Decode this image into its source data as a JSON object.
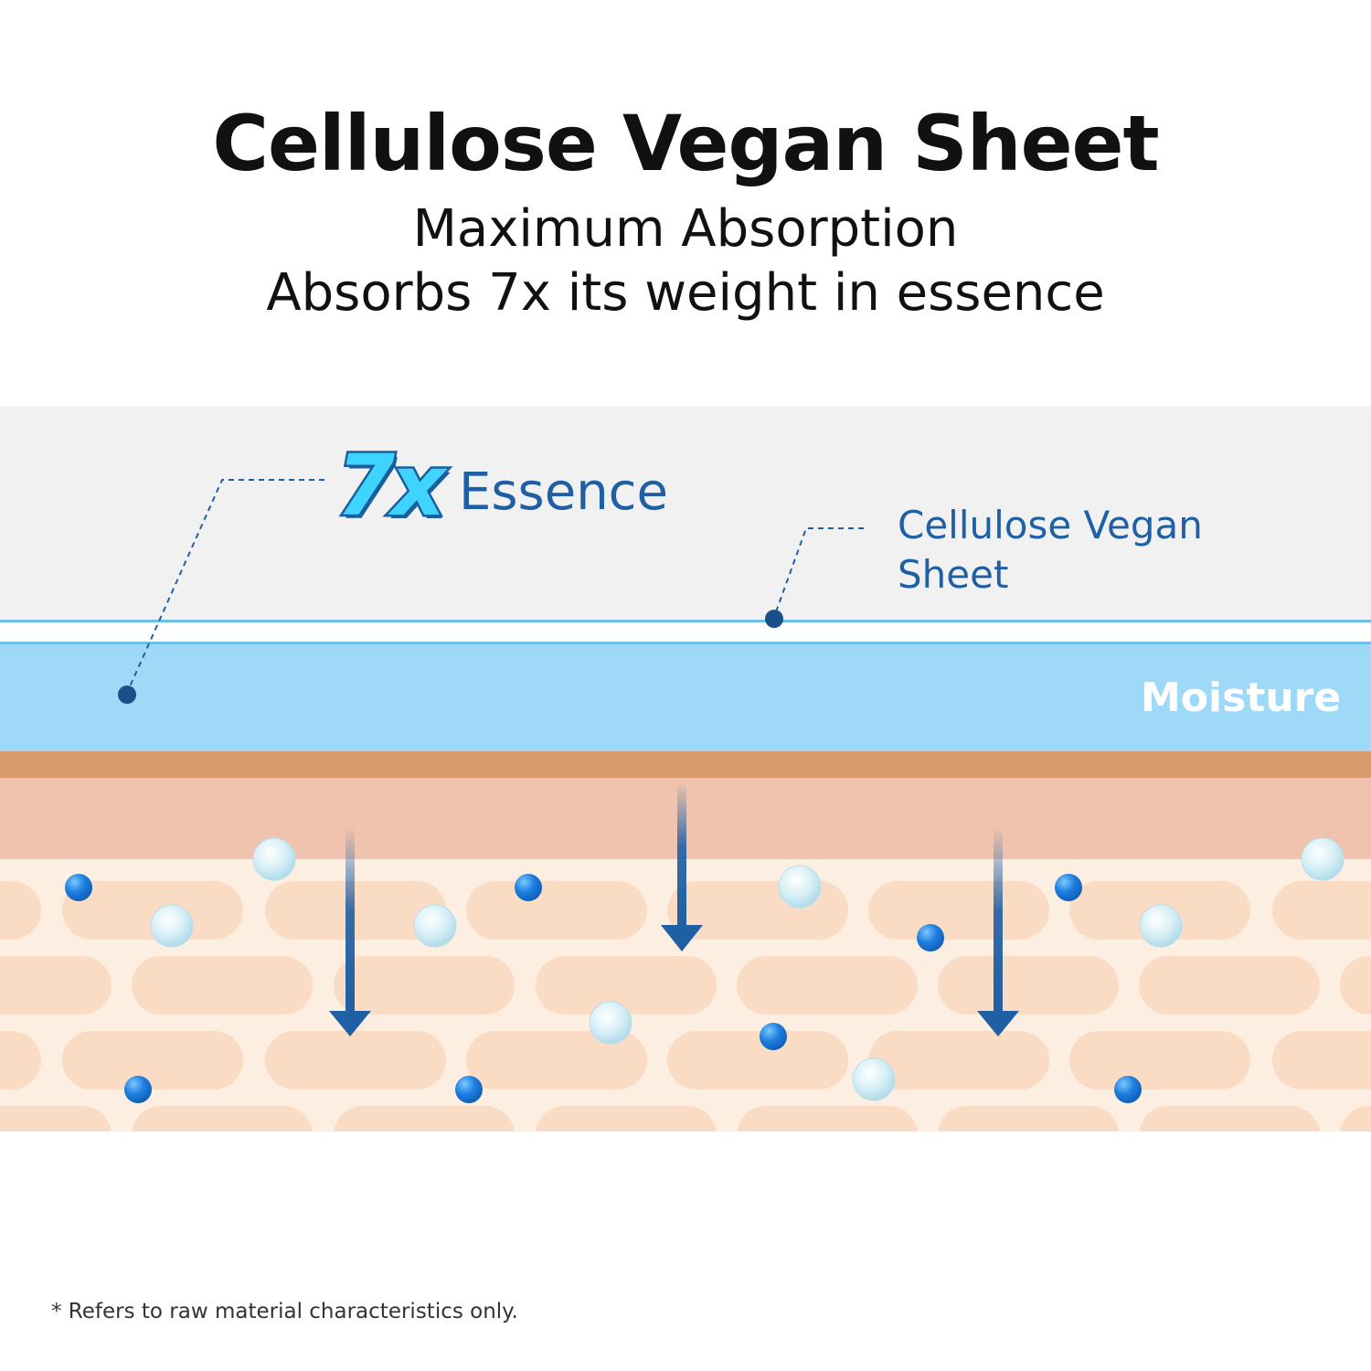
{
  "title": "Cellulose Vegan Sheet",
  "subtitle_line1": "Maximum Absorption",
  "subtitle_line2": "Absorbs 7x its weight in essence",
  "callout_essence": {
    "number": "7x",
    "word": "Essence"
  },
  "callout_sheet": {
    "line1": "Cellulose Vegan",
    "line2": "Sheet"
  },
  "layer_moisture": "Moisture",
  "footnote": "* Refers to raw material characteristics only.",
  "colors": {
    "sheet_bg": "#f1f1f1",
    "sheet_line": "#6cc0e4",
    "moisture": "#9ed9f7",
    "skin_top": "#d99a6c",
    "skin_mid": "#efc3ad",
    "skin_base": "#fdeee2",
    "cell": "#fadbc4",
    "accent_blue": "#1f5fa3"
  },
  "icons": [
    "down-arrow-icon",
    "water-droplet-icon",
    "dot-marker-icon"
  ]
}
